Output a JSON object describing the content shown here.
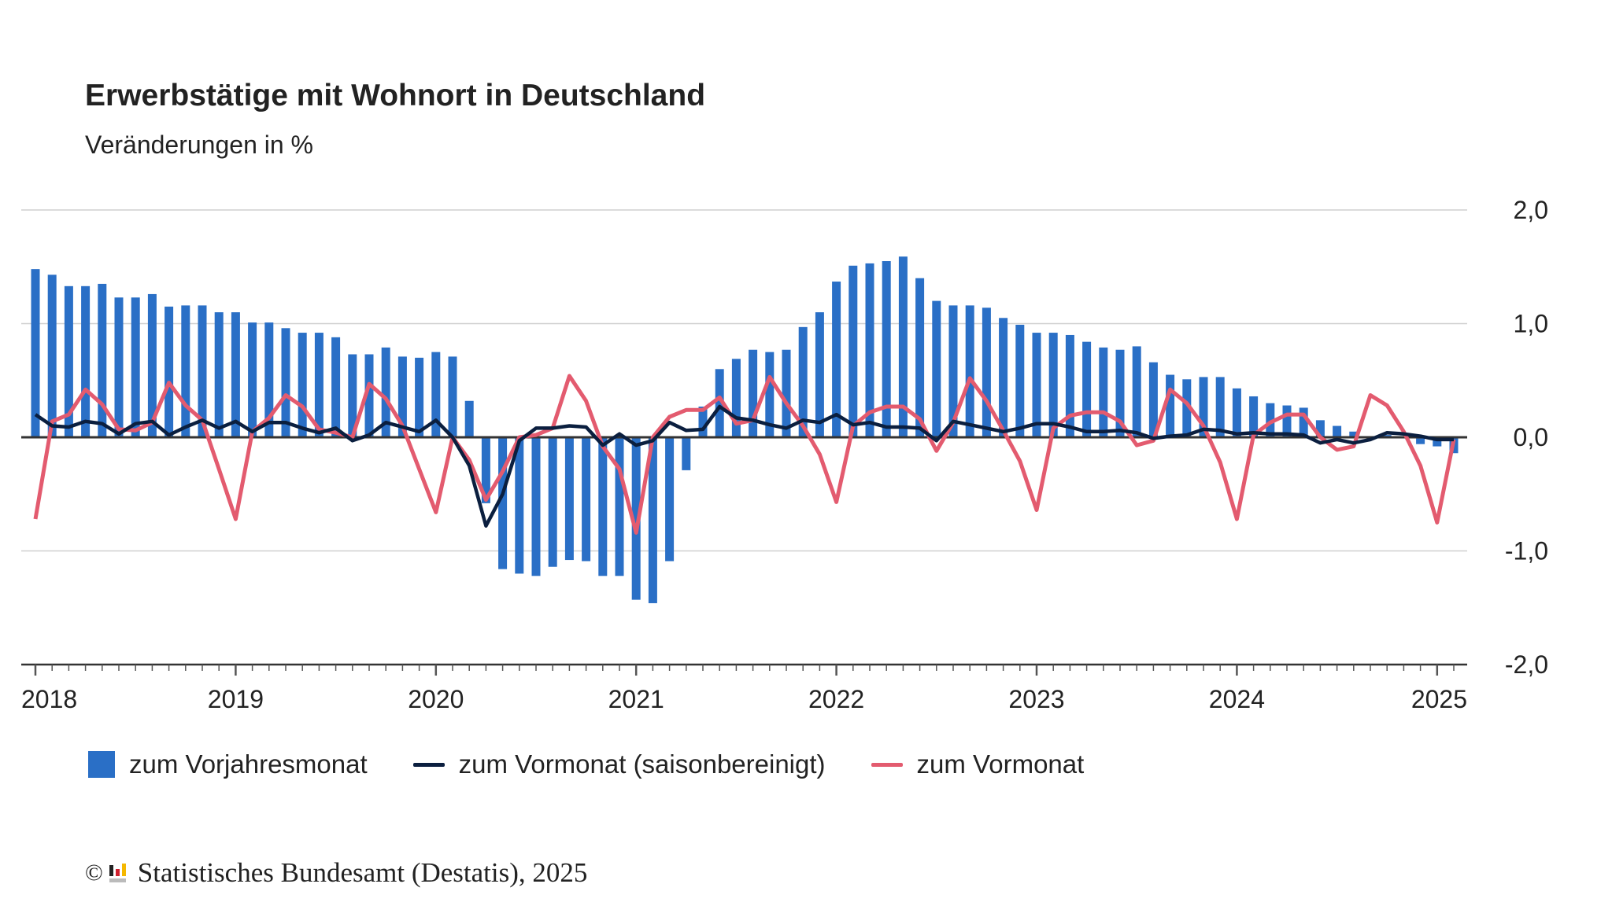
{
  "chart_data": {
    "type": "bar+line",
    "title": "Erwerbstätige mit Wohnort in Deutschland",
    "subtitle": "Veränderungen in %",
    "ylim": [
      -2.0,
      2.0
    ],
    "yticks": [
      "2,0",
      "1,0",
      "0,0",
      "-1,0",
      "-2,0"
    ],
    "ytick_values": [
      2,
      1,
      0,
      -1,
      -2
    ],
    "xtick_labels": [
      "2018",
      "2019",
      "2020",
      "2021",
      "2022",
      "2023",
      "2024",
      "2025"
    ],
    "x_start": "2018-01",
    "x_end": "2025-02",
    "grid": true,
    "legend_position": "bottom",
    "series": [
      {
        "name": "zum Vorjahresmonat",
        "kind": "bar",
        "color": "#2a6fc6",
        "values": [
          1.48,
          1.43,
          1.33,
          1.33,
          1.35,
          1.23,
          1.23,
          1.26,
          1.15,
          1.16,
          1.16,
          1.1,
          1.1,
          1.01,
          1.01,
          0.96,
          0.92,
          0.92,
          0.88,
          0.73,
          0.73,
          0.79,
          0.71,
          0.7,
          0.75,
          0.71,
          0.32,
          -0.58,
          -1.16,
          -1.2,
          -1.22,
          -1.14,
          -1.08,
          -1.09,
          -1.22,
          -1.22,
          -1.43,
          -1.46,
          -1.09,
          -0.29,
          0.27,
          0.6,
          0.69,
          0.77,
          0.75,
          0.77,
          0.97,
          1.1,
          1.37,
          1.51,
          1.53,
          1.55,
          1.59,
          1.4,
          1.2,
          1.16,
          1.16,
          1.14,
          1.05,
          0.99,
          0.92,
          0.92,
          0.9,
          0.84,
          0.79,
          0.77,
          0.8,
          0.66,
          0.55,
          0.51,
          0.53,
          0.53,
          0.43,
          0.36,
          0.3,
          0.28,
          0.26,
          0.15,
          0.1,
          0.05,
          0.01,
          0.02,
          0.01,
          -0.06,
          -0.08,
          -0.14
        ]
      },
      {
        "name": "zum Vormonat (saisonbereinigt)",
        "kind": "line",
        "color": "#0b1f3f",
        "values": [
          0.2,
          0.1,
          0.09,
          0.14,
          0.12,
          0.03,
          0.12,
          0.14,
          0.02,
          0.09,
          0.15,
          0.08,
          0.14,
          0.05,
          0.13,
          0.13,
          0.08,
          0.04,
          0.08,
          -0.03,
          0.02,
          0.13,
          0.09,
          0.05,
          0.15,
          0.0,
          -0.25,
          -0.78,
          -0.5,
          -0.03,
          0.08,
          0.08,
          0.1,
          0.09,
          -0.07,
          0.03,
          -0.07,
          -0.03,
          0.13,
          0.06,
          0.07,
          0.27,
          0.17,
          0.15,
          0.11,
          0.08,
          0.15,
          0.13,
          0.2,
          0.11,
          0.13,
          0.09,
          0.09,
          0.08,
          -0.03,
          0.14,
          0.11,
          0.08,
          0.05,
          0.08,
          0.12,
          0.12,
          0.09,
          0.05,
          0.05,
          0.06,
          0.04,
          -0.01,
          0.01,
          0.02,
          0.07,
          0.06,
          0.03,
          0.04,
          0.03,
          0.03,
          0.02,
          -0.05,
          -0.02,
          -0.05,
          -0.02,
          0.04,
          0.03,
          0.01,
          -0.02,
          -0.02
        ]
      },
      {
        "name": "zum Vormonat",
        "kind": "line",
        "color": "#e35b6f",
        "values": [
          -0.72,
          0.14,
          0.2,
          0.42,
          0.29,
          0.07,
          0.06,
          0.13,
          0.48,
          0.28,
          0.15,
          -0.28,
          -0.72,
          0.05,
          0.17,
          0.37,
          0.27,
          0.07,
          0.04,
          0.0,
          0.47,
          0.34,
          0.1,
          -0.28,
          -0.66,
          0.0,
          -0.2,
          -0.55,
          -0.3,
          0.0,
          0.02,
          0.08,
          0.54,
          0.32,
          -0.08,
          -0.28,
          -0.84,
          0.0,
          0.18,
          0.24,
          0.24,
          0.35,
          0.12,
          0.15,
          0.53,
          0.3,
          0.1,
          -0.15,
          -0.57,
          0.1,
          0.22,
          0.27,
          0.27,
          0.16,
          -0.12,
          0.13,
          0.52,
          0.32,
          0.06,
          -0.21,
          -0.64,
          0.08,
          0.19,
          0.22,
          0.22,
          0.14,
          -0.07,
          -0.03,
          0.42,
          0.3,
          0.1,
          -0.22,
          -0.72,
          0.02,
          0.13,
          0.2,
          0.2,
          0.0,
          -0.11,
          -0.08,
          0.37,
          0.28,
          0.05,
          -0.25,
          -0.75,
          -0.02
        ]
      }
    ]
  },
  "footer": {
    "copyright": "©",
    "text": "Statistisches Bundesamt (Destatis), 2025",
    "logo": "destatis-logo"
  }
}
